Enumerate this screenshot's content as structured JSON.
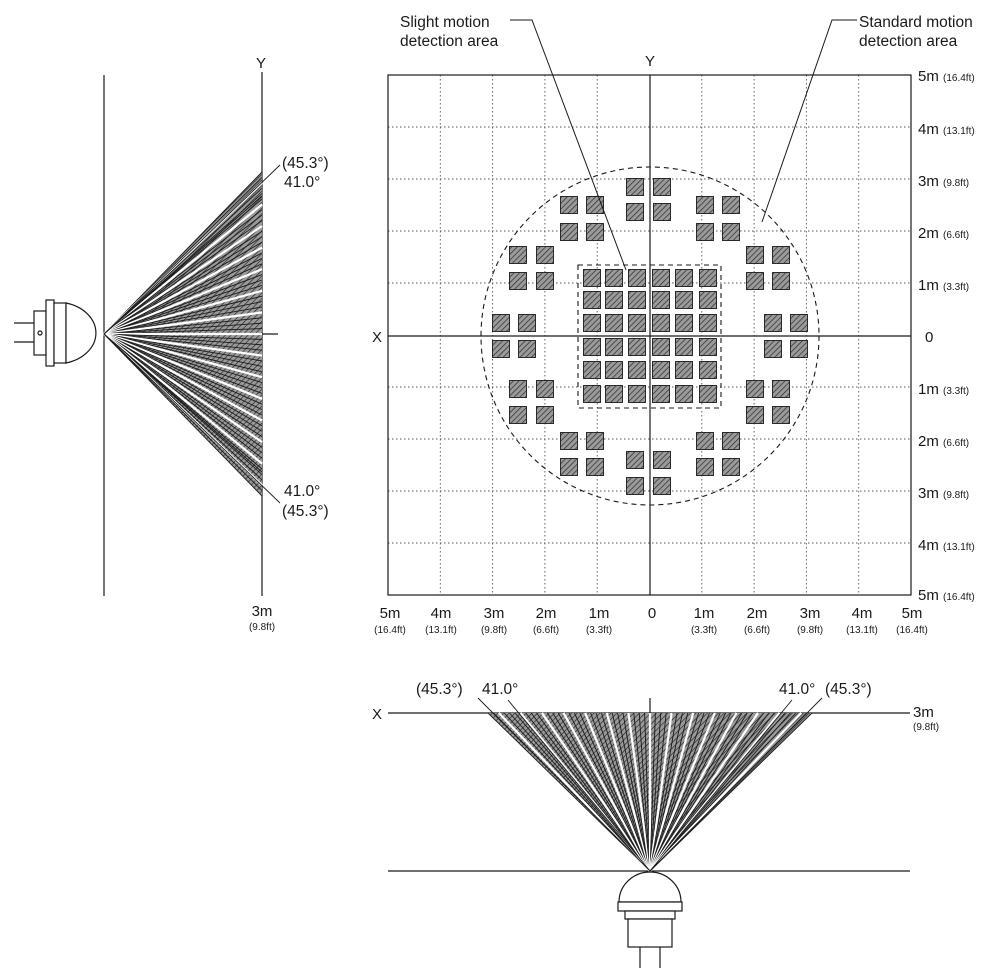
{
  "labels": {
    "slight_area": [
      "Slight motion",
      "detection area"
    ],
    "standard_area": [
      "Standard motion",
      "detection area"
    ]
  },
  "axes": {
    "x": "X",
    "y": "Y",
    "origin": "0"
  },
  "right_scale": [
    {
      "m": "5m",
      "ft": "(16.4ft)"
    },
    {
      "m": "4m",
      "ft": "(13.1ft)"
    },
    {
      "m": "3m",
      "ft": "(9.8ft)"
    },
    {
      "m": "2m",
      "ft": "(6.6ft)"
    },
    {
      "m": "1m",
      "ft": "(3.3ft)"
    },
    {
      "m": "0",
      "ft": ""
    },
    {
      "m": "1m",
      "ft": "(3.3ft)"
    },
    {
      "m": "2m",
      "ft": "(6.6ft)"
    },
    {
      "m": "3m",
      "ft": "(9.8ft)"
    },
    {
      "m": "4m",
      "ft": "(13.1ft)"
    },
    {
      "m": "5m",
      "ft": "(16.4ft)"
    }
  ],
  "bottom_scale": [
    {
      "m": "5m",
      "ft": "(16.4ft)"
    },
    {
      "m": "4m",
      "ft": "(13.1ft)"
    },
    {
      "m": "3m",
      "ft": "(9.8ft)"
    },
    {
      "m": "2m",
      "ft": "(6.6ft)"
    },
    {
      "m": "1m",
      "ft": "(3.3ft)"
    },
    {
      "m": "0",
      "ft": ""
    },
    {
      "m": "1m",
      "ft": "(3.3ft)"
    },
    {
      "m": "2m",
      "ft": "(6.6ft)"
    },
    {
      "m": "3m",
      "ft": "(9.8ft)"
    },
    {
      "m": "4m",
      "ft": "(13.1ft)"
    },
    {
      "m": "5m",
      "ft": "(16.4ft)"
    }
  ],
  "side_view": {
    "outer_angle": "(45.3°)",
    "inner_angle": "41.0°",
    "distance_m": "3m",
    "distance_ft": "(9.8ft)"
  },
  "front_view": {
    "left_outer_angle": "(45.3°)",
    "left_inner_angle": "41.0°",
    "right_inner_angle": "41.0°",
    "right_outer_angle": "(45.3°)",
    "distance_m": "3m",
    "distance_ft": "(9.8ft)"
  },
  "colors": {
    "ink": "#1a1a1a",
    "zone_fill": "#8d8d8d"
  }
}
